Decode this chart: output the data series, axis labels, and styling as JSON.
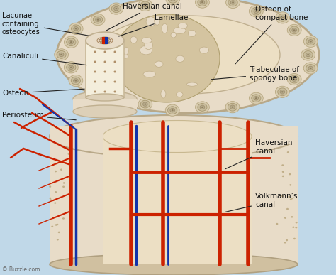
{
  "bg_color": "#c0d8e8",
  "bone_outer": "#e8dcc8",
  "bone_inner": "#f0e8d8",
  "bone_marrow_bg": "#e8dcc8",
  "compact_ring_outer": "#d8ccb0",
  "compact_ring_mid": "#c8bc9c",
  "compact_ring_inner": "#b8ac8c",
  "compact_ring_center": "#a09070",
  "spongy_bg": "#d4c4a0",
  "spongy_hole": "#e8dcc8",
  "blood_red": "#cc2200",
  "blood_blue": "#1133aa",
  "label_color": "#111111",
  "watermark": "© Buzzle.com",
  "labels": {
    "lacunae": "Lacunae\ncontaining\nosteocytes",
    "haversian_top": "Haversian canal",
    "lamellae": "Lamellae",
    "osteon_compact": "Osteon of\ncompact bone",
    "canaliculi": "Canaliculi",
    "trabeculae": "Trabeculae of\nspongy bone",
    "osteon": "Osteon",
    "periosteum": "Periosteum",
    "haversian_bottom": "Haversian\ncanal",
    "volkmanns": "Volkmann’s\ncanal"
  }
}
